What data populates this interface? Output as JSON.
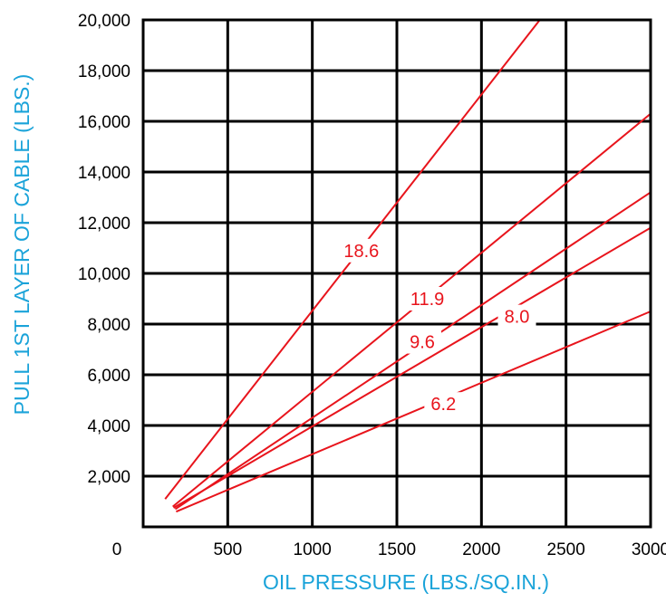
{
  "chart_data": {
    "type": "line",
    "title": "",
    "xlabel": "OIL PRESSURE (LBS./SQ.IN.)",
    "ylabel": "PULL 1ST LAYER OF CABLE (LBS.)",
    "xlim": [
      0,
      3000
    ],
    "ylim": [
      0,
      20000
    ],
    "x_ticks": [
      500,
      1000,
      1500,
      2000,
      2500,
      3000
    ],
    "x_tick_labels": [
      "500",
      "1000",
      "1500",
      "2000",
      "2500",
      "3000"
    ],
    "y_ticks": [
      2000,
      4000,
      6000,
      8000,
      10000,
      12000,
      14000,
      16000,
      18000,
      20000
    ],
    "y_tick_labels": [
      "2,000",
      "4,000",
      "6,000",
      "8,000",
      "10,000",
      "12,000",
      "14,000",
      "16,000",
      "18,000",
      "20,000"
    ],
    "origin_label": "0",
    "grid": true,
    "line_color": "#e8141c",
    "axis_title_color": "#1aa3d9",
    "series": [
      {
        "name": "18.6",
        "x": [
          130,
          2345
        ],
        "y": [
          1100,
          20000
        ],
        "label_at": [
          1290,
          10900
        ]
      },
      {
        "name": "11.9",
        "x": [
          175,
          3000
        ],
        "y": [
          800,
          16300
        ],
        "label_at": [
          1680,
          9000
        ]
      },
      {
        "name": "9.6",
        "x": [
          190,
          3000
        ],
        "y": [
          700,
          13200
        ],
        "label_at": [
          1650,
          7300
        ]
      },
      {
        "name": "8.0",
        "x": [
          180,
          3000
        ],
        "y": [
          750,
          11800
        ],
        "label_at": [
          2210,
          8300
        ]
      },
      {
        "name": "6.2",
        "x": [
          195,
          3000
        ],
        "y": [
          600,
          8500
        ],
        "label_at": [
          1775,
          4850
        ]
      }
    ]
  }
}
